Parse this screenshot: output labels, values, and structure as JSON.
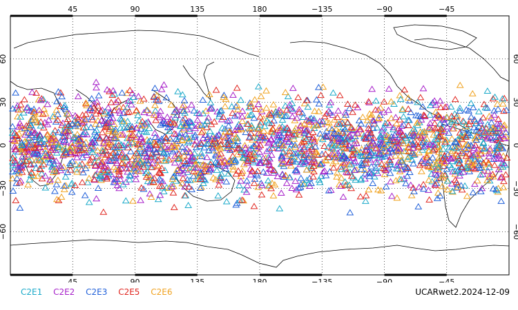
{
  "map": {
    "lon_labels": [
      "45",
      "90",
      "135",
      "180",
      "−135",
      "−90",
      "−45"
    ],
    "lat_labels": [
      "60",
      "30",
      "0",
      "−30",
      "−60"
    ],
    "lon_range": [
      0,
      360
    ],
    "lat_range": [
      -90,
      90
    ],
    "grid": "dotted",
    "symbol": "open triangle"
  },
  "legend": [
    {
      "label": "C2E1",
      "color": "#19a9c9"
    },
    {
      "label": "C2E2",
      "color": "#a61fc9"
    },
    {
      "label": "C2E3",
      "color": "#1f5fd9"
    },
    {
      "label": "C2E5",
      "color": "#e0251f"
    },
    {
      "label": "C2E6",
      "color": "#f0a21f"
    }
  ],
  "stamp": "UCARwet2.2024-12-09",
  "colors": {
    "coast": "#000000",
    "grid": "#000000",
    "frame": "#000000"
  }
}
